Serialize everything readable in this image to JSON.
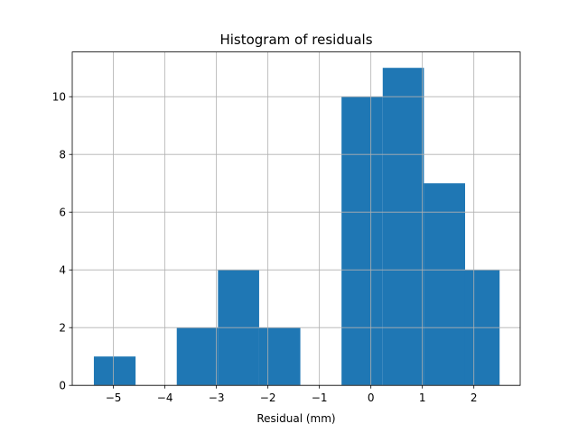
{
  "chart_data": {
    "type": "bar",
    "title": "Histogram of residuals",
    "xlabel": "Residual (mm)",
    "ylabel": "",
    "xlim": [
      -5.8,
      2.9
    ],
    "ylim": [
      0,
      11.55
    ],
    "grid": true,
    "bar_color": "#1f77b4",
    "grid_color": "#b0b0b0",
    "bin_edges": [
      -5.38,
      -4.57,
      -3.77,
      -2.97,
      -2.17,
      -1.37,
      -0.57,
      0.23,
      1.03,
      1.83,
      2.5
    ],
    "values": [
      1,
      0,
      2,
      4,
      2,
      0,
      10,
      11,
      7,
      4
    ],
    "xticks": [
      -5,
      -4,
      -3,
      -2,
      -1,
      0,
      1,
      2
    ],
    "xtick_labels": [
      "−5",
      "−4",
      "−3",
      "−2",
      "−1",
      "0",
      "1",
      "2"
    ],
    "yticks": [
      0,
      2,
      4,
      6,
      8,
      10
    ],
    "ytick_labels": [
      "0",
      "2",
      "4",
      "6",
      "8",
      "10"
    ]
  }
}
